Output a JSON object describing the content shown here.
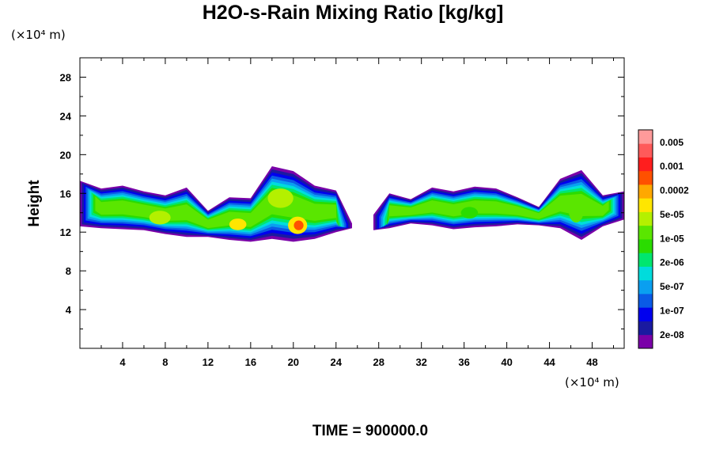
{
  "chart_data": {
    "type": "heatmap",
    "title": "H2O-s-Rain Mixing Ratio [kg/kg]",
    "ylabel": "Height",
    "xlabel": "",
    "x_unit": "(×10⁴ m)",
    "y_unit": "(×10⁴ m)",
    "xlim": [
      0,
      51
    ],
    "ylim": [
      0,
      30
    ],
    "x_ticks": [
      4,
      8,
      12,
      16,
      20,
      24,
      28,
      32,
      36,
      40,
      44,
      48
    ],
    "y_ticks": [
      4,
      8,
      12,
      16,
      20,
      24,
      28
    ],
    "x_tick_labels": [
      "4",
      "8",
      "12",
      "16",
      "20",
      "24",
      "28",
      "32",
      "36",
      "40",
      "44",
      "48"
    ],
    "y_tick_labels": [
      "4",
      "8",
      "12",
      "16",
      "20",
      "24",
      "28"
    ],
    "time_label": "TIME = 900000.0",
    "colorbar": {
      "labels": [
        "2e-08",
        "1e-07",
        "5e-07",
        "2e-06",
        "1e-05",
        "5e-05",
        "0.0002",
        "0.001",
        "0.005"
      ],
      "colors": [
        "#7a00a8",
        "#1a1aa0",
        "#0000ee",
        "#0a5ae6",
        "#0a9ff0",
        "#00dcdc",
        "#00e66e",
        "#2adc00",
        "#5ae600",
        "#b4f000",
        "#ffe600",
        "#ffa800",
        "#ff5000",
        "#ff1e1e",
        "#ff5a5a",
        "#ff9a9a"
      ]
    },
    "regions": [
      {
        "name": "cloud-band-west",
        "x": [
          0,
          2,
          4,
          6,
          8,
          10,
          12,
          14,
          16,
          18,
          20,
          22,
          24,
          25.5
        ],
        "top": [
          17.3,
          16.5,
          16.8,
          16.2,
          15.8,
          16.6,
          14.2,
          15.6,
          15.5,
          18.8,
          18.3,
          16.8,
          16.3,
          12.9
        ],
        "bottom": [
          12.6,
          12.4,
          12.3,
          12.2,
          11.8,
          11.5,
          11.5,
          11.2,
          11.0,
          11.3,
          11.0,
          11.3,
          12.0,
          12.4
        ],
        "core_value": 0.0002
      },
      {
        "name": "cloud-band-east",
        "x": [
          27.5,
          29,
          31,
          33,
          35,
          37,
          39,
          41,
          43,
          45,
          47,
          49,
          51
        ],
        "top": [
          13.8,
          16.0,
          15.4,
          16.6,
          16.2,
          16.7,
          16.5,
          15.6,
          14.6,
          17.5,
          18.4,
          15.8,
          16.2
        ],
        "bottom": [
          12.2,
          12.4,
          12.9,
          12.7,
          12.3,
          12.5,
          12.6,
          12.8,
          12.7,
          12.4,
          11.2,
          12.6,
          13.3
        ],
        "core_value": 5e-05
      }
    ]
  }
}
